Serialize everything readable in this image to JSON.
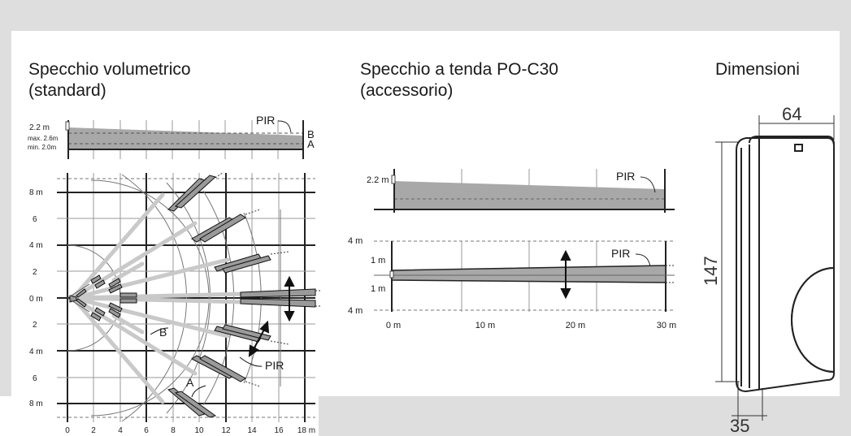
{
  "sections": {
    "volumetric": {
      "title_line1": "Specchio volumetrico",
      "title_line2": "(standard)",
      "side": {
        "height_label": "2.2 m",
        "max_label": "max. 2.6m",
        "min_label": "min. 2.0m",
        "pir_label": "PIR",
        "b_label": "B",
        "a_label": "A"
      },
      "top": {
        "y_labels": [
          "8 m",
          "6",
          "4 m",
          "2",
          "0 m",
          "2",
          "4 m",
          "6",
          "8 m"
        ],
        "x_labels": [
          "0",
          "2",
          "4",
          "6",
          "8",
          "10",
          "12",
          "14",
          "16",
          "18 m"
        ],
        "a_label": "A",
        "b_label": "B",
        "pir_label": "PIR"
      }
    },
    "curtain": {
      "title_line1": "Specchio a tenda PO-C30",
      "title_line2": "(accessorio)",
      "side": {
        "height_label": "2.2 m",
        "pir_label": "PIR"
      },
      "top": {
        "y_labels": [
          "4 m",
          "1 m",
          "1 m",
          "4 m"
        ],
        "x_labels": [
          "0 m",
          "10 m",
          "20 m",
          "30 m"
        ],
        "pir_label": "PIR"
      }
    },
    "dimensions": {
      "title": "Dimensioni",
      "width": "64",
      "height": "147",
      "depth": "35"
    }
  },
  "colors": {
    "zone_fill": "#a8a8a8",
    "grid": "#888888",
    "frame": "#dedede"
  }
}
